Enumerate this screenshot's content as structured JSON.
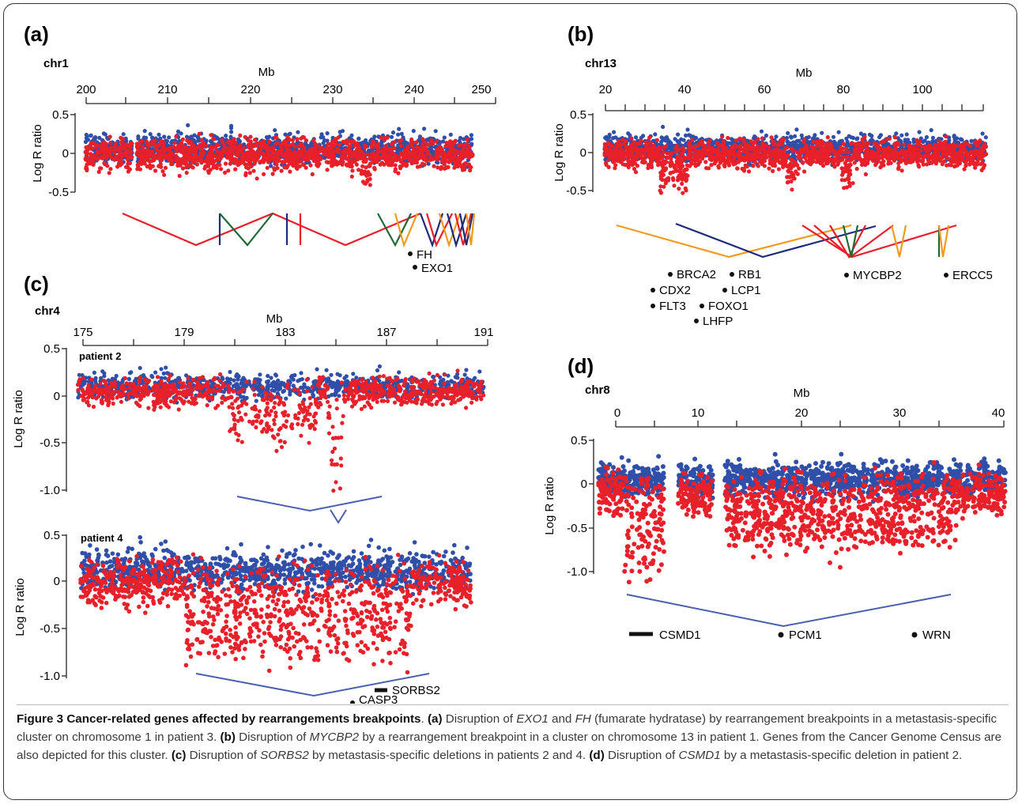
{
  "figure": {
    "number_label": "Figure 3",
    "title": "Cancer-related genes affected by rearrangements breakpoints",
    "caption_parts": [
      {
        "letter": "(a)",
        "text_before": "Disruption of ",
        "gene1": "EXO1",
        "text_mid1": " and ",
        "gene2": "FH",
        "text_after": " (fumarate hydratase) by rearrangement breakpoints in a metastasis-specific cluster on chromosome 1 in patient 3."
      },
      {
        "letter": "(b)",
        "text_before": "Disruption of ",
        "gene1": "MYCBP2",
        "text_after": " by a rearrangement breakpoint in a cluster on chromosome 13 in patient 1. Genes from the Cancer Genome Census are also depicted for this cluster."
      },
      {
        "letter": "(c)",
        "text_before": "Disruption of ",
        "gene1": "SORBS2",
        "text_after": " by metastasis-specific deletions in patients 2 and 4."
      },
      {
        "letter": "(d)",
        "text_before": "Disruption of ",
        "gene1": "CSMD1",
        "text_after": " by a metastasis-specific deletion in patient 2."
      }
    ]
  },
  "colors": {
    "red": "#e8202a",
    "blue": "#2f4fa8",
    "navy": "#1e2a7a",
    "green": "#1e6b35",
    "orange": "#f39a1e",
    "line_blue": "#4a5fb0"
  },
  "ylabel": "Log R ratio",
  "panels": [
    {
      "id": "a",
      "label": "(a)",
      "chromosome": "chr1",
      "xlabel": "Mb",
      "x_ticks": [
        "200",
        "210",
        "220",
        "230",
        "240",
        "250"
      ],
      "y_ticks": [
        "0.5",
        "0",
        "-0.5"
      ],
      "genes": [
        "FH",
        "EXO1"
      ]
    },
    {
      "id": "b",
      "label": "(b)",
      "chromosome": "chr13",
      "xlabel": "Mb",
      "x_ticks": [
        "20",
        "40",
        "60",
        "80",
        "100"
      ],
      "y_ticks": [
        "0.5",
        "0",
        "-0.5"
      ],
      "genes": [
        "BRCA2",
        "RB1",
        "CDX2",
        "LCP1",
        "FLT3",
        "FOXO1",
        "LHFP",
        "MYCBP2",
        "ERCC5"
      ]
    },
    {
      "id": "c",
      "label": "(c)",
      "chromosome": "chr4",
      "xlabel": "Mb",
      "x_ticks": [
        "175",
        "179",
        "183",
        "187",
        "191"
      ],
      "y_ticks": [
        "0.5",
        "0",
        "-0.5",
        "-1.0"
      ],
      "subpanels": [
        "patient 2",
        "patient 4"
      ],
      "genes": [
        "SORBS2",
        "CASP3"
      ]
    },
    {
      "id": "d",
      "label": "(d)",
      "chromosome": "chr8",
      "xlabel": "Mb",
      "x_ticks": [
        "0",
        "10",
        "20",
        "30",
        "40"
      ],
      "y_ticks": [
        "0.5",
        "0",
        "-0.5",
        "-1.0"
      ],
      "genes": [
        "CSMD1",
        "PCM1",
        "WRN"
      ]
    }
  ]
}
